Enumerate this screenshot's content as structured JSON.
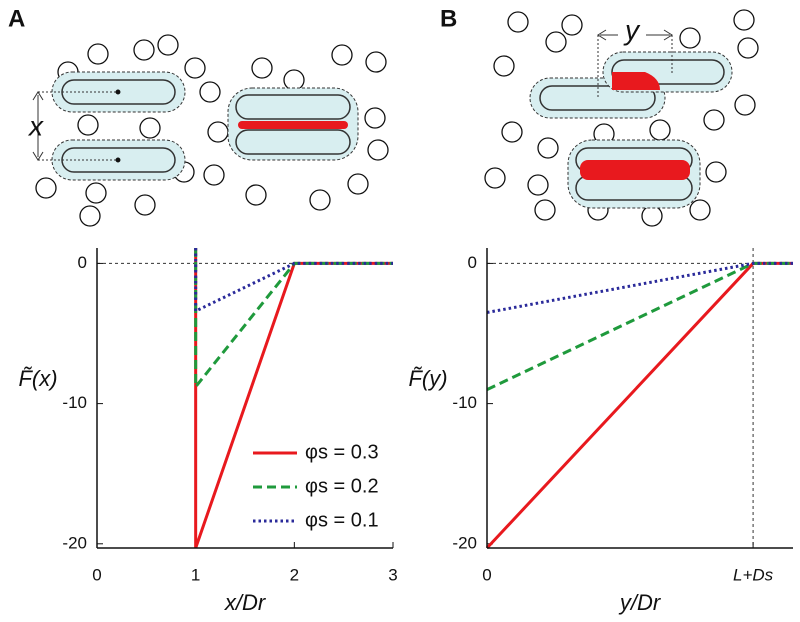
{
  "panel_labels": [
    "A",
    "B"
  ],
  "diagram_labels": [
    "x",
    "y"
  ],
  "chart_data": [
    {
      "type": "line",
      "x_label": "x/Dr",
      "y_label": "F̃(x)",
      "xlim": [
        0,
        3
      ],
      "xticks": [
        0,
        1,
        2,
        3
      ],
      "ylim": [
        -20.3,
        1.1
      ],
      "yticks": [
        -20,
        -10,
        0
      ],
      "hlines": [
        0
      ],
      "legend": "lower right",
      "x": [
        1,
        1,
        2,
        3
      ],
      "series": [
        {
          "name": "φs = 0.3",
          "color": "#e8191e",
          "dash": "solid",
          "values": [
            1.1,
            -20.3,
            0,
            0
          ]
        },
        {
          "name": "φs = 0.2",
          "color": "#1f9a3c",
          "dash": "dashed",
          "values": [
            1.1,
            -8.8,
            0,
            0
          ]
        },
        {
          "name": "φs = 0.1",
          "color": "#2a2a9a",
          "dash": "dotted",
          "values": [
            1.1,
            -3.4,
            0,
            0
          ]
        }
      ]
    },
    {
      "type": "line",
      "x_label": "y/Dr",
      "y_label": "F̃(y)",
      "xlim": [
        0,
        1.15
      ],
      "xticks": [
        0,
        {
          "value": 1,
          "label": "L+Ds"
        }
      ],
      "ylim": [
        -20.3,
        1.1
      ],
      "yticks": [
        -20,
        -10,
        0
      ],
      "hlines": [
        0
      ],
      "vlines": [
        1
      ],
      "x": [
        0,
        1,
        1.15
      ],
      "series": [
        {
          "color": "#e8191e",
          "dash": "solid",
          "values": [
            -20.3,
            0,
            0
          ]
        },
        {
          "color": "#1f9a3c",
          "dash": "dashed",
          "values": [
            -9,
            0,
            0
          ]
        },
        {
          "color": "#2a2a9a",
          "dash": "dotted",
          "values": [
            -3.5,
            0,
            0
          ]
        }
      ]
    }
  ]
}
